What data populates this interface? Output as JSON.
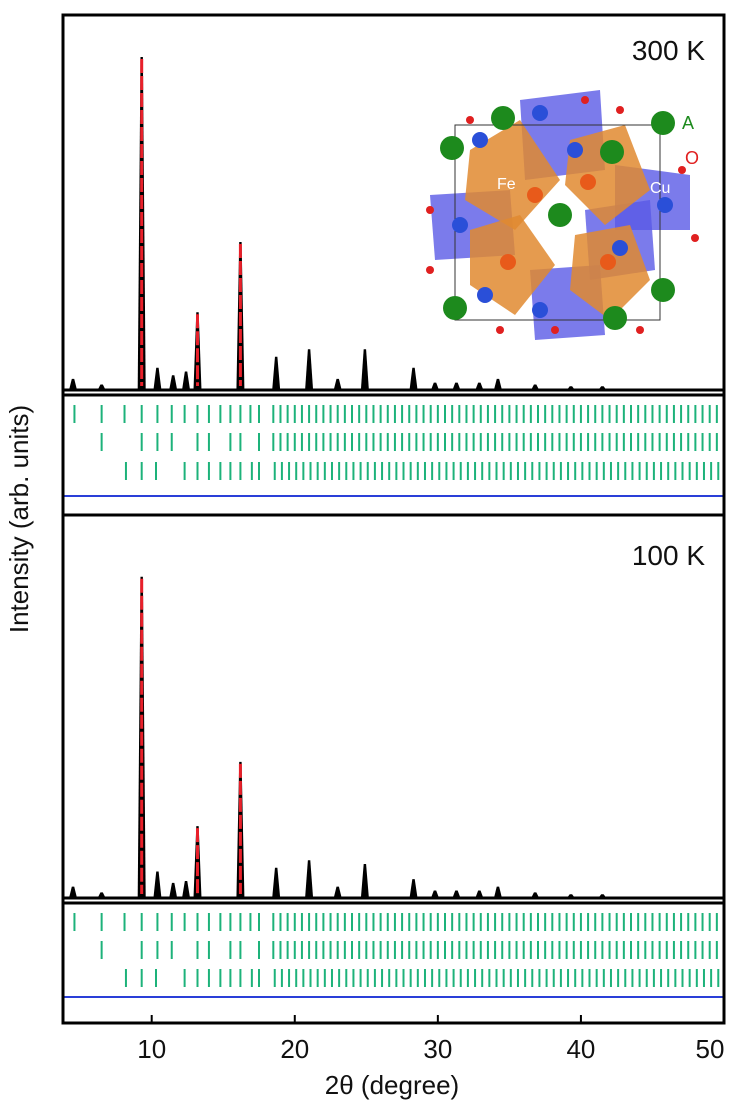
{
  "chart_data": {
    "type": "xrd",
    "x_label": "2θ (degree)",
    "y_label": "Intensity (arb. units)",
    "xlim": [
      3.8,
      50
    ],
    "xticks": [
      10,
      20,
      30,
      40,
      50
    ],
    "colors": {
      "observed": "#000000",
      "calculated": "#e8202a",
      "reflections": "#1db27a",
      "difference": "#2a3fd8"
    },
    "reflections": [
      [
        4.6,
        6.5,
        8.1,
        9.3,
        10.4,
        11.4,
        12.3,
        13.2,
        14.0,
        14.8,
        15.5,
        16.2,
        16.9,
        17.5,
        18.5,
        19,
        19.5,
        20,
        20.5,
        21,
        21.5,
        22,
        22.5,
        23,
        23.5,
        24,
        24.5,
        25,
        25.5,
        26,
        26.5,
        27,
        27.5,
        28,
        28.5,
        29,
        29.5,
        30,
        30.5,
        31,
        31.5,
        32,
        32.5,
        33,
        33.5,
        34,
        34.5,
        35,
        35.5,
        36,
        36.5,
        37,
        37.5,
        38,
        38.5,
        39,
        39.5,
        40,
        40.5,
        41,
        41.5,
        42,
        42.5,
        43,
        43.5,
        44,
        44.5,
        45,
        45.5,
        46,
        46.5,
        47,
        47.5,
        48,
        48.5,
        49,
        49.5
      ],
      [
        6.5,
        9.3,
        10.4,
        11.4,
        13.2,
        14.0,
        15.5,
        16.2,
        17.5,
        18.5,
        19,
        19.5,
        20,
        20.5,
        21,
        21.5,
        22,
        22.5,
        23,
        23.5,
        24,
        24.5,
        25,
        25.5,
        26,
        26.5,
        27,
        27.5,
        28,
        28.5,
        29,
        29.5,
        30,
        30.5,
        31,
        31.5,
        32,
        32.5,
        33,
        33.5,
        34,
        34.5,
        35,
        35.5,
        36,
        36.5,
        37,
        37.5,
        38,
        38.5,
        39,
        39.5,
        40,
        40.5,
        41,
        41.5,
        42,
        42.5,
        43,
        43.5,
        44,
        44.5,
        45,
        45.5,
        46,
        46.5,
        47,
        47.5,
        48,
        48.5,
        49,
        49.5
      ],
      [
        8.2,
        9.3,
        10.3,
        12.3,
        13.2,
        14.0,
        14.8,
        15.5,
        16.2,
        17.0,
        17.5,
        18.6,
        19.1,
        19.6,
        20.1,
        20.6,
        21.1,
        21.6,
        22.1,
        22.6,
        23.1,
        23.6,
        24.1,
        24.6,
        25.1,
        25.6,
        26.1,
        26.6,
        27.1,
        27.6,
        28.1,
        28.6,
        29.1,
        29.6,
        30.1,
        30.6,
        31.1,
        31.6,
        32.1,
        32.6,
        33.1,
        33.6,
        34.1,
        34.6,
        35.1,
        35.6,
        36.1,
        36.6,
        37.1,
        37.6,
        38.1,
        38.6,
        39.1,
        39.6,
        40.1,
        40.6,
        41.1,
        41.6,
        42.1,
        42.6,
        43.1,
        43.6,
        44.1,
        44.6,
        45.1,
        45.6,
        46.1,
        46.6,
        47.1,
        47.6,
        48.1,
        48.6,
        49.1,
        49.6
      ]
    ],
    "panels": [
      {
        "label": "300 K",
        "ylim": [
          0,
          100
        ],
        "x": [
          4.5,
          6.5,
          9.3,
          10.4,
          11.5,
          12.4,
          13.2,
          16.2,
          18.7,
          21.0,
          23.0,
          24.9,
          28.3,
          29.8,
          31.3,
          32.9,
          34.2,
          36.8,
          39.3,
          41.5
        ],
        "values": [
          3,
          1.5,
          90,
          6,
          4,
          5,
          21,
          40,
          9,
          11,
          3,
          11,
          6,
          2,
          2,
          2,
          3,
          1.5,
          1,
          1
        ]
      },
      {
        "label": "100 K",
        "ylim": [
          0,
          100
        ],
        "x": [
          4.5,
          6.5,
          9.3,
          10.4,
          11.5,
          12.4,
          13.2,
          16.2,
          18.7,
          21.0,
          23.0,
          24.9,
          28.3,
          29.8,
          31.3,
          32.9,
          34.2,
          36.8,
          39.3,
          41.5
        ],
        "values": [
          3,
          1.5,
          85,
          7,
          4,
          4.5,
          19,
          36,
          8,
          10,
          3,
          9,
          5,
          2,
          2,
          2,
          3,
          1.5,
          1,
          1
        ]
      }
    ],
    "inset_labels": {
      "a_site": "A",
      "oxygen": "O",
      "fe": "Fe",
      "cu": "Cu"
    }
  }
}
